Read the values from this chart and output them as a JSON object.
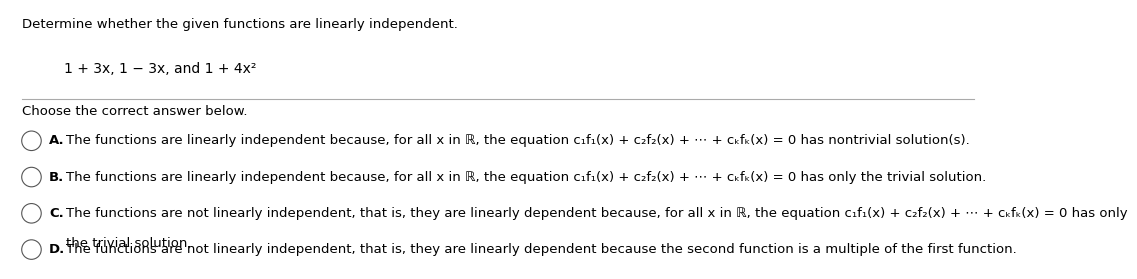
{
  "title": "Determine whether the given functions are linearly independent.",
  "subtitle": "1 + 3x, 1 − 3x, and 1 + 4x²",
  "prompt": "Choose the correct answer below.",
  "options": [
    {
      "label": "A.",
      "text": "The functions are linearly independent because, for all x in ℝ, the equation c₁f₁(x) + c₂f₂(x) + ⋯ + cₖfₖ(x) = 0 has nontrivial solution(s)."
    },
    {
      "label": "B.",
      "text": "The functions are linearly independent because, for all x in ℝ, the equation c₁f₁(x) + c₂f₂(x) + ⋯ + cₖfₖ(x) = 0 has only the trivial solution."
    },
    {
      "label": "C.",
      "text": "The functions are not linearly independent, that is, they are linearly dependent because, for all x in ℝ, the equation c₁f₁(x) + c₂f₂(x) + ⋯ + cₖfₖ(x) = 0 has only\nthe trivial solution.",
      "line2": "the trivial solution."
    },
    {
      "label": "D.",
      "text": "The functions are not linearly independent, that is, they are linearly dependent because the second function is a multiple of the first function."
    }
  ],
  "bg_color": "#ffffff",
  "text_color": "#000000",
  "font_size": 9.5,
  "title_font_size": 9.5,
  "line_color": "#aaaaaa",
  "circle_color": "#555555"
}
